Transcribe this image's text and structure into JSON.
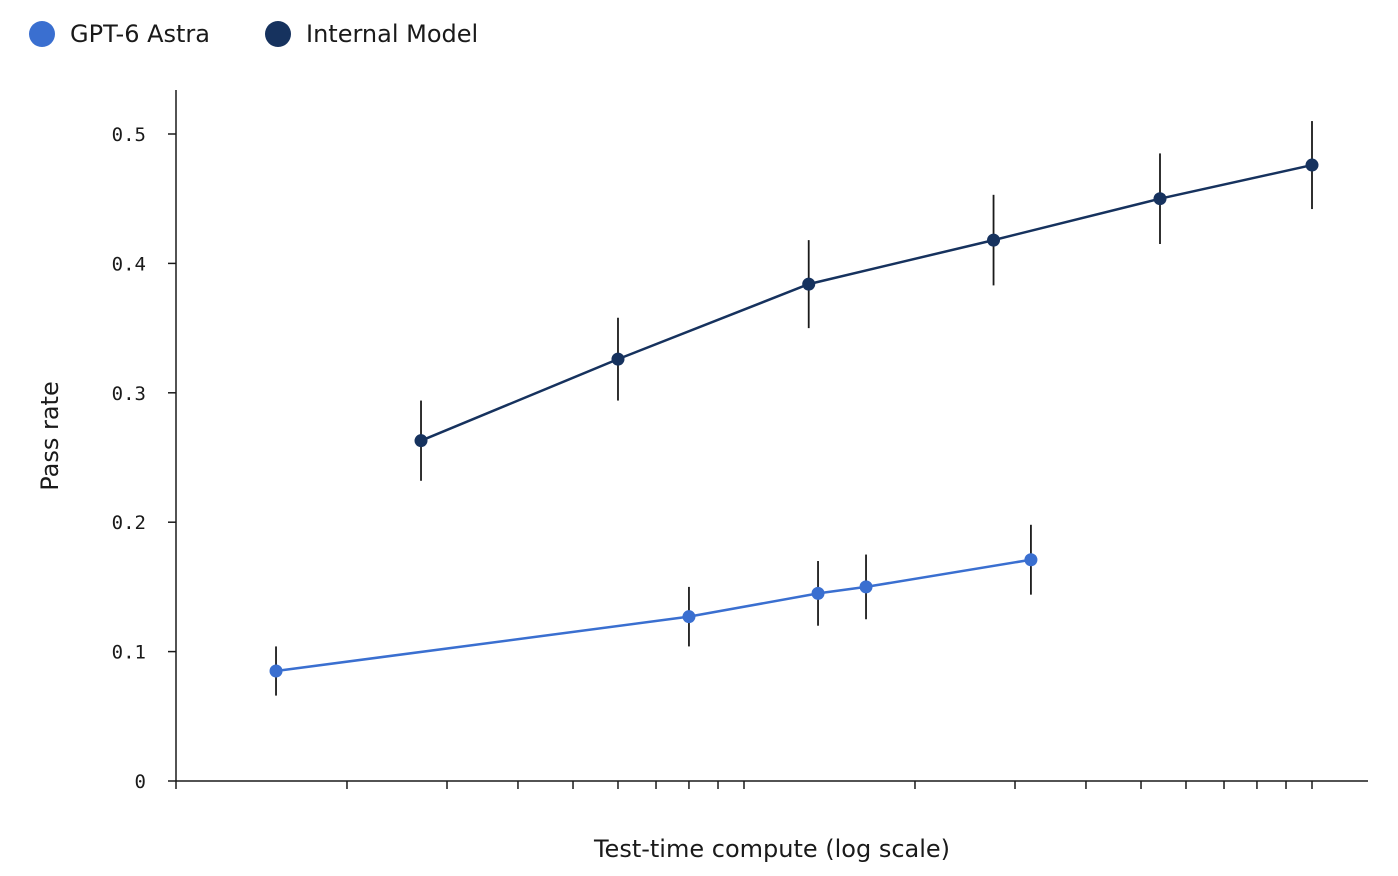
{
  "chart_data": {
    "type": "line",
    "title": "",
    "xlabel": "Test-time compute (log scale)",
    "ylabel": "Pass rate",
    "x_scale": "log",
    "ylim": [
      0,
      0.53
    ],
    "y_ticks": [
      0,
      0.1,
      0.2,
      0.3,
      0.4,
      0.5
    ],
    "y_tick_labels": [
      "0",
      "0.1",
      "0.2",
      "0.3",
      "0.4",
      "0.5"
    ],
    "x_tick_labels_visible": false,
    "grid": false,
    "legend_position": "top-left",
    "series": [
      {
        "name": "GPT-6 Astra",
        "color": "#3a6fd0",
        "x": [
          1.5,
          8,
          13.5,
          16.4,
          32
        ],
        "y": [
          0.085,
          0.127,
          0.145,
          0.15,
          0.171
        ],
        "err": [
          0.019,
          0.023,
          0.025,
          0.025,
          0.027
        ]
      },
      {
        "name": "Internal Model",
        "color": "#16325e",
        "x": [
          2.7,
          6,
          13,
          27.5,
          54,
          100
        ],
        "y": [
          0.263,
          0.326,
          0.384,
          0.418,
          0.45,
          0.476
        ],
        "err": [
          0.031,
          0.032,
          0.034,
          0.035,
          0.035,
          0.034
        ]
      }
    ]
  }
}
